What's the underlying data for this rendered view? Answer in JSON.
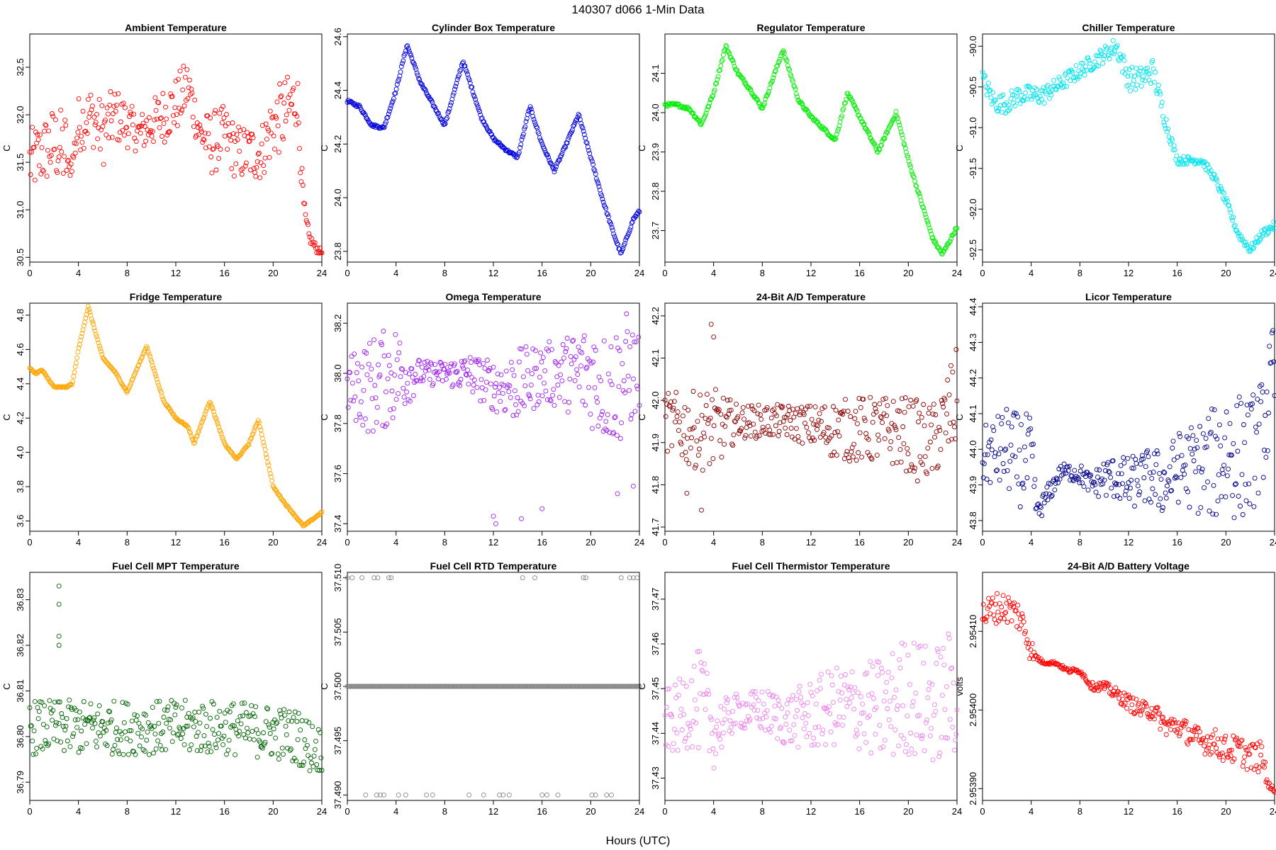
{
  "header": {
    "title": "140307    d066    1-Min Data",
    "xlabel": "Hours (UTC)"
  },
  "chart_data": [
    {
      "type": "scatter",
      "title": "Ambient Temperature",
      "ylabel": "C",
      "color": "#ff0000",
      "xlim": [
        0,
        24
      ],
      "ylim": [
        30.45,
        32.85
      ],
      "xticks": [
        "0",
        "4",
        "8",
        "12",
        "16",
        "20",
        "24"
      ],
      "yticks": [
        "30.5",
        "31.0",
        "31.5",
        "32.0",
        "32.5"
      ],
      "x": [
        0,
        1,
        2,
        3,
        3.2,
        3.5,
        4,
        5,
        6,
        7,
        8,
        9,
        10,
        11,
        12,
        13,
        14,
        15,
        16,
        17,
        18,
        19,
        20,
        21,
        22,
        22.2,
        22.6,
        23,
        23.5,
        24
      ],
      "y": [
        31.5,
        31.6,
        31.7,
        31.6,
        31.4,
        31.5,
        31.9,
        32.0,
        31.8,
        32.0,
        31.9,
        31.8,
        31.9,
        32.0,
        32.1,
        32.3,
        31.8,
        31.7,
        31.8,
        31.6,
        31.6,
        31.6,
        31.9,
        32.0,
        32.2,
        31.6,
        30.9,
        30.7,
        30.6,
        30.55
      ],
      "spread": [
        0.35,
        0.35,
        0.4,
        0.45,
        0.1,
        0.1,
        0.3,
        0.3,
        0.35,
        0.3,
        0.25,
        0.2,
        0.25,
        0.3,
        0.3,
        0.3,
        0.2,
        0.35,
        0.3,
        0.3,
        0.3,
        0.3,
        0.35,
        0.4,
        0.3,
        0.15,
        0.15,
        0.05,
        0.05,
        0.03
      ]
    },
    {
      "type": "scatter",
      "title": "Cylinder Box Temperature",
      "ylabel": "C",
      "color": "#0000dd",
      "xlim": [
        0,
        24
      ],
      "ylim": [
        23.76,
        24.61
      ],
      "xticks": [
        "0",
        "4",
        "8",
        "12",
        "16",
        "20",
        "24"
      ],
      "yticks": [
        "23.8",
        "24.0",
        "24.2",
        "24.4",
        "24.6"
      ],
      "x": [
        0,
        1,
        2,
        3,
        4,
        4.9,
        6,
        7,
        8,
        9.5,
        11,
        12,
        13,
        14,
        15,
        16,
        17,
        18,
        19,
        20,
        21,
        22,
        22.5,
        23.5,
        24
      ],
      "y": [
        24.36,
        24.34,
        24.27,
        24.26,
        24.4,
        24.57,
        24.43,
        24.35,
        24.27,
        24.51,
        24.3,
        24.22,
        24.18,
        24.15,
        24.34,
        24.2,
        24.1,
        24.2,
        24.31,
        24.15,
        23.99,
        23.85,
        23.79,
        23.92,
        23.95
      ],
      "spread": [
        0.005,
        0.005,
        0.005,
        0.005,
        0.005,
        0.005,
        0.005,
        0.005,
        0.005,
        0.005,
        0.005,
        0.005,
        0.005,
        0.005,
        0.005,
        0.005,
        0.005,
        0.005,
        0.005,
        0.005,
        0.005,
        0.005,
        0.005,
        0.005,
        0.005
      ]
    },
    {
      "type": "scatter",
      "title": "Regulator Temperature",
      "ylabel": "C",
      "color": "#00ee00",
      "xlim": [
        0,
        24
      ],
      "ylim": [
        23.62,
        24.2
      ],
      "xticks": [
        "0",
        "4",
        "8",
        "12",
        "16",
        "20",
        "24"
      ],
      "yticks": [
        "23.7",
        "23.8",
        "23.9",
        "24.0",
        "24.1"
      ],
      "x": [
        0,
        1,
        2,
        3,
        4,
        5,
        6,
        7,
        8,
        9.7,
        11,
        12,
        13,
        14,
        15,
        16,
        17.5,
        19,
        20,
        21,
        22,
        22.8,
        23.5,
        24
      ],
      "y": [
        24.02,
        24.02,
        24.01,
        23.97,
        24.05,
        24.17,
        24.1,
        24.06,
        24.01,
        24.16,
        24.03,
        23.99,
        23.96,
        23.93,
        24.05,
        23.99,
        23.9,
        24.0,
        23.88,
        23.78,
        23.68,
        23.64,
        23.68,
        23.71
      ],
      "spread": [
        0.004,
        0.004,
        0.004,
        0.004,
        0.004,
        0.004,
        0.004,
        0.004,
        0.004,
        0.004,
        0.004,
        0.004,
        0.004,
        0.004,
        0.004,
        0.004,
        0.004,
        0.004,
        0.004,
        0.004,
        0.004,
        0.004,
        0.004,
        0.004
      ]
    },
    {
      "type": "scatter",
      "title": "Chiller Temperature",
      "ylabel": "C",
      "color": "#00e5ee",
      "xlim": [
        0,
        24
      ],
      "ylim": [
        -92.65,
        -89.85
      ],
      "xticks": [
        "0",
        "4",
        "8",
        "12",
        "16",
        "20",
        "24"
      ],
      "yticks": [
        "-92.5",
        "-92.0",
        "-91.5",
        "-91.0",
        "-90.5",
        "-90.0"
      ],
      "x": [
        0,
        1,
        2,
        3,
        4,
        5,
        6,
        7,
        8,
        9,
        10,
        11,
        12,
        13,
        14,
        15,
        16,
        17,
        18,
        19,
        20,
        21,
        22,
        23,
        24
      ],
      "y": [
        -90.4,
        -90.7,
        -90.7,
        -90.6,
        -90.6,
        -90.6,
        -90.5,
        -90.4,
        -90.3,
        -90.2,
        -90.1,
        -90.0,
        -90.4,
        -90.4,
        -90.3,
        -90.9,
        -91.4,
        -91.4,
        -91.4,
        -91.6,
        -91.9,
        -92.3,
        -92.5,
        -92.3,
        -92.2
      ],
      "spread": [
        0.12,
        0.12,
        0.12,
        0.12,
        0.12,
        0.12,
        0.1,
        0.1,
        0.1,
        0.1,
        0.1,
        0.12,
        0.15,
        0.15,
        0.15,
        0.1,
        0.05,
        0.05,
        0.05,
        0.05,
        0.05,
        0.05,
        0.05,
        0.05,
        0.05
      ]
    },
    {
      "type": "scatter",
      "title": "Fridge Temperature",
      "ylabel": "C",
      "color": "#ffa500",
      "xlim": [
        0,
        24
      ],
      "ylim": [
        3.54,
        4.87
      ],
      "xticks": [
        "0",
        "4",
        "8",
        "12",
        "16",
        "20",
        "24"
      ],
      "yticks": [
        "3.6",
        "3.8",
        "4.0",
        "4.2",
        "4.4",
        "4.6",
        "4.8"
      ],
      "x": [
        0,
        0.5,
        1,
        2,
        3,
        3.5,
        4,
        4.8,
        6,
        7,
        8,
        9.6,
        11,
        12,
        13,
        13.5,
        14.8,
        16,
        17,
        18,
        18.8,
        20,
        21,
        22.5,
        24
      ],
      "y": [
        4.49,
        4.46,
        4.48,
        4.38,
        4.38,
        4.4,
        4.6,
        4.85,
        4.55,
        4.47,
        4.35,
        4.62,
        4.3,
        4.2,
        4.15,
        4.05,
        4.3,
        4.05,
        3.96,
        4.05,
        4.19,
        3.8,
        3.7,
        3.57,
        3.65
      ],
      "spread": [
        0.004,
        0.004,
        0.004,
        0.004,
        0.004,
        0.004,
        0.004,
        0.004,
        0.004,
        0.004,
        0.004,
        0.004,
        0.004,
        0.004,
        0.004,
        0.004,
        0.004,
        0.004,
        0.004,
        0.004,
        0.004,
        0.004,
        0.004,
        0.004,
        0.004
      ]
    },
    {
      "type": "scatter",
      "title": "Omega Temperature",
      "ylabel": "C",
      "color": "#a020f0",
      "xlim": [
        0,
        24
      ],
      "ylim": [
        37.37,
        38.28
      ],
      "xticks": [
        "0",
        "4",
        "8",
        "12",
        "16",
        "20",
        "24"
      ],
      "yticks": [
        "37.4",
        "37.6",
        "37.8",
        "38.0",
        "38.2"
      ],
      "x": [
        0,
        2,
        4,
        6,
        8,
        10,
        12,
        14,
        16,
        18,
        20,
        21,
        22,
        23,
        24
      ],
      "y": [
        37.95,
        37.95,
        38.0,
        38.0,
        38.0,
        38.0,
        37.95,
        37.95,
        38.0,
        38.0,
        38.0,
        37.95,
        37.95,
        38.0,
        38.0
      ],
      "spread": [
        0.12,
        0.2,
        0.2,
        0.05,
        0.05,
        0.08,
        0.1,
        0.15,
        0.12,
        0.15,
        0.22,
        0.22,
        0.25,
        0.25,
        0.15
      ],
      "outliers": [
        [
          12.0,
          37.43
        ],
        [
          12.2,
          37.4
        ],
        [
          14.3,
          37.42
        ],
        [
          16.0,
          37.46
        ],
        [
          22.2,
          37.52
        ],
        [
          23.5,
          37.55
        ]
      ]
    },
    {
      "type": "scatter",
      "title": "24-Bit A/D Temperature",
      "ylabel": "C",
      "color": "#8b0000",
      "xlim": [
        0,
        24
      ],
      "ylim": [
        41.69,
        42.23
      ],
      "xticks": [
        "0",
        "4",
        "8",
        "12",
        "16",
        "20",
        "24"
      ],
      "yticks": [
        "41.7",
        "41.8",
        "41.9",
        "42.0",
        "42.1",
        "42.2"
      ],
      "x": [
        0,
        2,
        4,
        6,
        8,
        10,
        12,
        14,
        16,
        18,
        20,
        21,
        22,
        23,
        24
      ],
      "y": [
        41.95,
        41.93,
        41.93,
        41.95,
        41.95,
        41.95,
        41.94,
        41.93,
        41.93,
        41.93,
        41.92,
        41.9,
        41.9,
        41.95,
        42.0
      ],
      "spread": [
        0.07,
        0.09,
        0.1,
        0.04,
        0.04,
        0.04,
        0.05,
        0.07,
        0.08,
        0.08,
        0.09,
        0.1,
        0.09,
        0.1,
        0.13
      ],
      "outliers": [
        [
          3.8,
          42.18
        ],
        [
          4.0,
          42.15
        ],
        [
          1.8,
          41.78
        ],
        [
          3.0,
          41.74
        ]
      ]
    },
    {
      "type": "scatter",
      "title": "Licor Temperature",
      "ylabel": "C",
      "color": "#00008b",
      "xlim": [
        0,
        24
      ],
      "ylim": [
        43.77,
        44.41
      ],
      "xticks": [
        "0",
        "4",
        "8",
        "12",
        "16",
        "20",
        "24"
      ],
      "yticks": [
        "43.8",
        "43.9",
        "44.0",
        "44.1",
        "44.2",
        "44.3",
        "44.4"
      ],
      "x": [
        0,
        1,
        2,
        3,
        4,
        4.5,
        5.5,
        6.5,
        8,
        9,
        10,
        11,
        12,
        13,
        14,
        15,
        16,
        17,
        18,
        19,
        20,
        21,
        22,
        23,
        24
      ],
      "y": [
        43.98,
        43.99,
        44.0,
        43.97,
        43.96,
        43.82,
        43.88,
        43.94,
        43.93,
        43.9,
        43.92,
        43.92,
        43.9,
        43.92,
        43.92,
        43.9,
        43.95,
        43.95,
        43.95,
        43.96,
        44.0,
        43.98,
        43.98,
        44.05,
        44.2
      ],
      "spread": [
        0.08,
        0.1,
        0.12,
        0.13,
        0.14,
        0.03,
        0.03,
        0.02,
        0.03,
        0.03,
        0.06,
        0.06,
        0.08,
        0.07,
        0.09,
        0.09,
        0.1,
        0.12,
        0.14,
        0.16,
        0.2,
        0.18,
        0.17,
        0.15,
        0.18
      ]
    },
    {
      "type": "scatter",
      "title": "Fuel Cell MPT Temperature",
      "ylabel": "C",
      "color": "#006400",
      "xlim": [
        0,
        24
      ],
      "ylim": [
        36.786,
        36.836
      ],
      "xticks": [
        "0",
        "4",
        "8",
        "12",
        "16",
        "20",
        "24"
      ],
      "yticks": [
        "36.79",
        "36.80",
        "36.81",
        "36.82",
        "36.83"
      ],
      "x": [
        0,
        4,
        8,
        12,
        16,
        20,
        22,
        23,
        24
      ],
      "y": [
        36.802,
        36.802,
        36.802,
        36.802,
        36.802,
        36.801,
        36.8,
        36.798,
        36.797
      ],
      "spread": [
        0.006,
        0.006,
        0.006,
        0.006,
        0.006,
        0.006,
        0.006,
        0.006,
        0.005
      ],
      "outliers": [
        [
          2.4,
          36.833
        ],
        [
          2.4,
          36.829
        ],
        [
          2.4,
          36.822
        ],
        [
          2.4,
          36.82
        ]
      ]
    },
    {
      "type": "scatter",
      "title": "Fuel Cell RTD Temperature",
      "ylabel": "C",
      "color": "#888888",
      "xlim": [
        0,
        24
      ],
      "ylim": [
        37.4895,
        37.5105
      ],
      "xticks": [
        "0",
        "4",
        "8",
        "12",
        "16",
        "20",
        "24"
      ],
      "yticks": [
        "37.490",
        "37.495",
        "37.500",
        "37.505",
        "37.510"
      ],
      "x": [
        0,
        24
      ],
      "y": [
        37.5,
        37.5
      ],
      "spread": [
        0,
        0
      ],
      "outliers": [
        [
          0,
          37.51
        ],
        [
          0.4,
          37.51
        ],
        [
          1.2,
          37.51
        ],
        [
          2.2,
          37.51
        ],
        [
          2.5,
          37.51
        ],
        [
          3.4,
          37.51
        ],
        [
          3.6,
          37.51
        ],
        [
          14.4,
          37.51
        ],
        [
          15.4,
          37.51
        ],
        [
          19.4,
          37.51
        ],
        [
          19.6,
          37.51
        ],
        [
          22.5,
          37.51
        ],
        [
          23.2,
          37.51
        ],
        [
          23.5,
          37.51
        ],
        [
          23.8,
          37.51
        ],
        [
          1.5,
          37.49
        ],
        [
          2.4,
          37.49
        ],
        [
          2.7,
          37.49
        ],
        [
          3.0,
          37.49
        ],
        [
          4.2,
          37.49
        ],
        [
          4.8,
          37.49
        ],
        [
          6.5,
          37.49
        ],
        [
          7.0,
          37.49
        ],
        [
          10.0,
          37.49
        ],
        [
          11.2,
          37.49
        ],
        [
          12.5,
          37.49
        ],
        [
          12.8,
          37.49
        ],
        [
          13.3,
          37.49
        ],
        [
          16.0,
          37.49
        ],
        [
          16.4,
          37.49
        ],
        [
          17.3,
          37.49
        ],
        [
          20.1,
          37.49
        ],
        [
          20.4,
          37.49
        ],
        [
          21.3,
          37.49
        ],
        [
          21.7,
          37.49
        ]
      ]
    },
    {
      "type": "scatter",
      "title": "Fuel Cell Thermistor Temperature",
      "ylabel": "C",
      "color": "#ee82ee",
      "xlim": [
        0,
        24
      ],
      "ylim": [
        37.425,
        37.476
      ],
      "xticks": [
        "0",
        "4",
        "8",
        "12",
        "16",
        "20",
        "24"
      ],
      "yticks": [
        "37.43",
        "37.44",
        "37.45",
        "37.46",
        "37.47"
      ],
      "x": [
        0,
        1,
        2,
        3,
        4,
        5,
        6,
        8,
        10,
        12,
        14,
        16,
        18,
        20,
        22,
        24
      ],
      "y": [
        37.443,
        37.443,
        37.447,
        37.447,
        37.44,
        37.443,
        37.445,
        37.445,
        37.443,
        37.444,
        37.446,
        37.446,
        37.445,
        37.449,
        37.446,
        37.45
      ],
      "spread": [
        0.007,
        0.008,
        0.01,
        0.012,
        0.008,
        0.005,
        0.004,
        0.005,
        0.006,
        0.008,
        0.009,
        0.01,
        0.012,
        0.014,
        0.013,
        0.015
      ]
    },
    {
      "type": "scatter",
      "title": "24-Bit A/D Battery Voltage",
      "ylabel": "volts",
      "color": "#ff0000",
      "xlim": [
        0,
        24
      ],
      "ylim": [
        2.953885,
        2.954175
      ],
      "xticks": [
        "0",
        "4",
        "8",
        "12",
        "16",
        "20",
        "24"
      ],
      "yticks": [
        "2.95390",
        "2.95400",
        "2.95410"
      ],
      "x": [
        0,
        1,
        2,
        3,
        4,
        4.2,
        5,
        6,
        7,
        8,
        9,
        10,
        11,
        12,
        13,
        14,
        15,
        16,
        17,
        18,
        19,
        20,
        21,
        22,
        23,
        23.6,
        24
      ],
      "y": [
        2.95412,
        2.95413,
        2.95413,
        2.95412,
        2.95408,
        2.95407,
        2.95406,
        2.95406,
        2.95405,
        2.95405,
        2.95403,
        2.95403,
        2.95402,
        2.95401,
        2.954,
        2.954,
        2.95398,
        2.95398,
        2.95397,
        2.95396,
        2.95396,
        2.95395,
        2.95395,
        2.95394,
        2.95394,
        2.9539,
        2.9539
      ],
      "spread": [
        2e-05,
        2e-05,
        2e-05,
        2e-05,
        2e-05,
        5e-06,
        2e-06,
        2e-06,
        3e-06,
        3e-06,
        5e-06,
        6e-06,
        8e-06,
        1e-05,
        1.1e-05,
        1.2e-05,
        1.3e-05,
        1.4e-05,
        1.5e-05,
        1.6e-05,
        1.7e-05,
        1.8e-05,
        1.8e-05,
        1.9e-05,
        2e-05,
        5e-06,
        5e-06
      ]
    }
  ]
}
